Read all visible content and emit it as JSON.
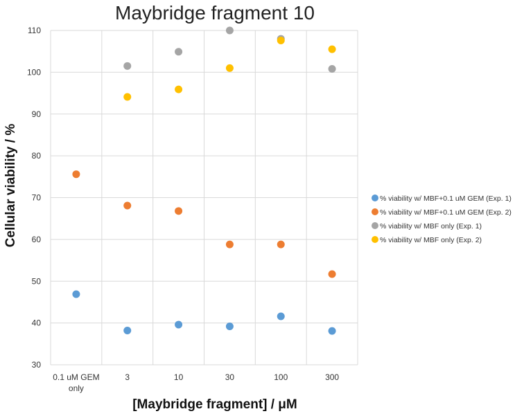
{
  "chart_data": {
    "type": "scatter",
    "title": "Maybridge fragment 10",
    "xlabel": "[Maybridge fragment] / μM",
    "ylabel": "Cellular viability / %",
    "ylim": [
      30,
      110
    ],
    "yticks": [
      30,
      40,
      50,
      60,
      70,
      80,
      90,
      100,
      110
    ],
    "categories": [
      [
        "0.1 uM GEM",
        "only"
      ],
      [
        "3"
      ],
      [
        "10"
      ],
      [
        "30"
      ],
      [
        "100"
      ],
      [
        "300"
      ]
    ],
    "grid": true,
    "legend_position": "right",
    "series": [
      {
        "name": "% viability w/ MBF+0.1 uM GEM (Exp. 1)",
        "color": "#5B9BD5",
        "values": [
          46.9,
          38.2,
          39.6,
          39.2,
          41.6,
          38.1
        ]
      },
      {
        "name": "% viability w/ MBF+0.1 uM GEM (Exp. 2)",
        "color": "#ED7D31",
        "values": [
          75.6,
          68.1,
          66.8,
          58.8,
          58.8,
          51.7
        ]
      },
      {
        "name": "% viability w/ MBF only (Exp. 1)",
        "color": "#A5A5A5",
        "values": [
          null,
          101.5,
          104.9,
          110.0,
          108.0,
          100.8
        ]
      },
      {
        "name": "% viability w/ MBF only (Exp. 2)",
        "color": "#FFC000",
        "values": [
          null,
          94.1,
          95.9,
          101.0,
          107.6,
          105.5
        ]
      }
    ]
  }
}
